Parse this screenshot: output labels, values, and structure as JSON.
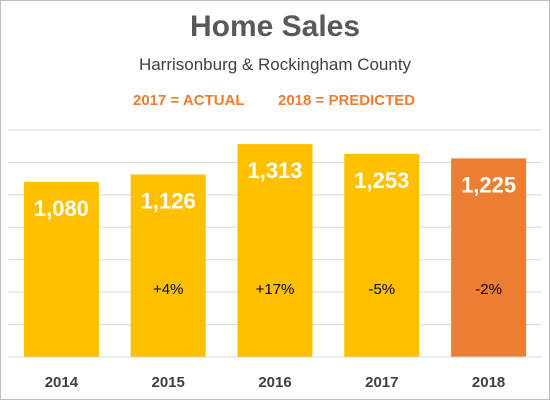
{
  "chart_data": {
    "type": "bar",
    "title": "Home Sales",
    "subtitle": "Harrisonburg & Rockingham County",
    "notes": [
      "2017 = ACTUAL",
      "2018 = PREDICTED"
    ],
    "categories": [
      "2014",
      "2015",
      "2016",
      "2017",
      "2018"
    ],
    "values": [
      1080,
      1126,
      1313,
      1253,
      1225
    ],
    "value_labels": [
      "1,080",
      "1,126",
      "1,313",
      "1,253",
      "1,225"
    ],
    "change_labels": [
      "",
      "+4%",
      "+17%",
      "-5%",
      "-2%"
    ],
    "bar_colors": [
      "#ffc000",
      "#ffc000",
      "#ffc000",
      "#ffc000",
      "#ed7d31"
    ],
    "ylim": [
      0,
      1400
    ],
    "grid": true,
    "legend": "none"
  },
  "colors": {
    "actual": "#ffc000",
    "predicted": "#ed7d31",
    "note_text": "#ed7d31",
    "title_text": "#595959"
  }
}
